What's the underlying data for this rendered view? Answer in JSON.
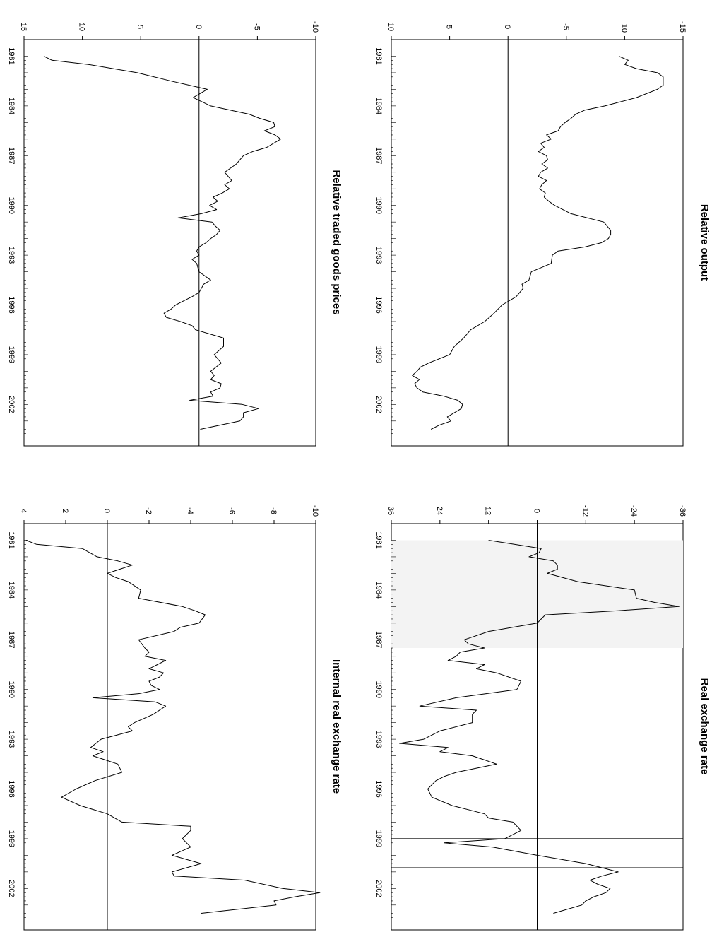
{
  "chart_data": [
    {
      "type": "line",
      "title": "Relative output",
      "x_tick_labels": [
        "1981",
        "1984",
        "1987",
        "1990",
        "1993",
        "1996",
        "1999",
        "2002"
      ],
      "y_tick_labels": [
        "-15",
        "-10",
        "-5",
        "0",
        "5",
        "10"
      ],
      "ylim": [
        -15,
        10
      ],
      "xlim": [
        1980.0,
        2004.5
      ],
      "zero_line": true,
      "grid": false,
      "series": [
        {
          "x": [
            1981.0,
            1981.25,
            1981.5,
            1981.75,
            1982.0,
            1982.25,
            1982.5,
            1982.75,
            1983.0,
            1983.5,
            1984.0,
            1984.25,
            1984.5,
            1984.75,
            1985.0,
            1985.25,
            1985.5,
            1985.75,
            1986.0,
            1986.25,
            1986.5,
            1986.75,
            1987.0,
            1987.25,
            1987.5,
            1987.75,
            1988.0,
            1988.25,
            1988.5,
            1988.75,
            1989.0,
            1989.25,
            1989.5,
            1989.75,
            1990.0,
            1990.5,
            1991.0,
            1991.5,
            1991.75,
            1992.0,
            1992.25,
            1992.5,
            1992.75,
            1993.0,
            1993.5,
            1994.0,
            1994.5,
            1994.75,
            1995.0,
            1995.5,
            1996.0,
            1996.5,
            1997.0,
            1997.5,
            1998.0,
            1998.5,
            1999.0,
            1999.5,
            1999.75,
            2000.0,
            2000.25,
            2000.5,
            2000.75,
            2001.0,
            2001.25,
            2001.5,
            2001.75,
            2002.0,
            2002.25,
            2002.5,
            2002.75,
            2003.0,
            2003.25,
            2003.5
          ],
          "y": [
            -9.5,
            -10.3,
            -10.0,
            -11.0,
            -12.8,
            -13.3,
            -13.3,
            -13.3,
            -12.8,
            -11.0,
            -8.3,
            -6.6,
            -5.8,
            -5.4,
            -4.9,
            -4.5,
            -4.3,
            -3.3,
            -3.7,
            -2.8,
            -3.1,
            -2.6,
            -3.3,
            -3.4,
            -2.9,
            -3.4,
            -2.8,
            -2.6,
            -3.3,
            -2.9,
            -2.7,
            -3.2,
            -3.1,
            -3.5,
            -4.0,
            -5.4,
            -8.2,
            -8.8,
            -8.8,
            -8.6,
            -8.0,
            -6.6,
            -4.3,
            -3.8,
            -3.7,
            -2.0,
            -1.8,
            -1.2,
            -1.3,
            -0.7,
            0.5,
            1.2,
            2.0,
            3.2,
            3.8,
            4.6,
            5.0,
            6.8,
            7.5,
            7.8,
            8.2,
            7.6,
            8.0,
            7.8,
            7.3,
            5.5,
            4.3,
            3.9,
            4.0,
            4.6,
            5.2,
            4.9,
            5.9,
            6.6
          ]
        }
      ]
    },
    {
      "type": "line",
      "title": "Real exchange rate",
      "x_tick_labels": [
        "1981",
        "1984",
        "1987",
        "1990",
        "1993",
        "1996",
        "1999",
        "2002"
      ],
      "y_tick_labels": [
        "-36",
        "-24",
        "-12",
        "0",
        "12",
        "24",
        "36"
      ],
      "ylim": [
        -36,
        36
      ],
      "xlim": [
        1980.0,
        2004.5
      ],
      "zero_line": true,
      "grid": false,
      "shaded_regions": [
        [
          1981.0,
          1987.5
        ]
      ],
      "vertical_lines": [
        1999.0,
        2000.75
      ],
      "series": [
        {
          "x": [
            1981.0,
            1981.5,
            1981.75,
            1982.0,
            1982.25,
            1982.5,
            1982.75,
            1983.0,
            1983.5,
            1984.0,
            1984.5,
            1984.75,
            1985.0,
            1985.25,
            1985.5,
            1986.0,
            1986.5,
            1987.0,
            1987.25,
            1987.5,
            1987.75,
            1988.0,
            1988.25,
            1988.5,
            1988.75,
            1989.0,
            1989.5,
            1990.0,
            1990.5,
            1991.0,
            1991.25,
            1991.5,
            1992.0,
            1992.5,
            1993.0,
            1993.25,
            1993.5,
            1993.75,
            1994.0,
            1994.25,
            1994.5,
            1995.0,
            1995.25,
            1995.5,
            1996.0,
            1996.5,
            1997.0,
            1997.25,
            1997.5,
            1997.75,
            1998.0,
            1998.5,
            1999.0,
            1999.25,
            1999.5,
            2000.0,
            2000.5,
            2000.75,
            2001.0,
            2001.25,
            2001.5,
            2001.75,
            2002.0,
            2002.25,
            2002.5,
            2002.75,
            2003.0,
            2003.5
          ],
          "y": [
            12.0,
            -1.0,
            -0.5,
            2.0,
            -4.0,
            -5.0,
            -5.0,
            -2.5,
            -10.0,
            -24.0,
            -24.5,
            -29.0,
            -35.0,
            -20.0,
            -2.0,
            0.0,
            12.0,
            18.0,
            17.0,
            13.0,
            19.0,
            20.0,
            22.0,
            13.0,
            15.0,
            10.0,
            4.0,
            5.0,
            20.0,
            29.0,
            15.0,
            16.0,
            16.0,
            24.0,
            28.0,
            34.0,
            22.0,
            24.0,
            16.0,
            13.0,
            10.0,
            20.0,
            23.0,
            25.0,
            27.0,
            26.0,
            21.0,
            17.0,
            13.0,
            12.0,
            6.0,
            4.0,
            8.0,
            23.0,
            11.0,
            0.0,
            -12.0,
            -16.0,
            -20.0,
            -16.0,
            -13.0,
            -15.0,
            -18.0,
            -17.0,
            -14.0,
            -12.0,
            -11.0,
            -4.0
          ]
        }
      ]
    },
    {
      "type": "line",
      "title": "Relative traded goods prices",
      "x_tick_labels": [
        "1981",
        "1984",
        "1987",
        "1990",
        "1993",
        "1996",
        "1999",
        "2002"
      ],
      "y_tick_labels": [
        "-10",
        "-5",
        "0",
        "5",
        "10",
        "15"
      ],
      "ylim": [
        -10,
        15
      ],
      "xlim": [
        1980.0,
        2004.5
      ],
      "zero_line": true,
      "grid": false,
      "series": [
        {
          "x": [
            1981.0,
            1981.25,
            1981.5,
            1982.0,
            1982.5,
            1983.0,
            1983.5,
            1984.0,
            1984.5,
            1984.75,
            1985.0,
            1985.25,
            1985.5,
            1985.75,
            1986.0,
            1986.25,
            1986.5,
            1986.75,
            1987.0,
            1987.5,
            1988.0,
            1988.5,
            1988.75,
            1989.0,
            1989.25,
            1989.5,
            1989.75,
            1990.0,
            1990.25,
            1990.5,
            1990.75,
            1991.0,
            1991.25,
            1991.5,
            1991.75,
            1992.0,
            1992.25,
            1992.5,
            1992.75,
            1993.0,
            1993.25,
            1993.5,
            1994.0,
            1994.5,
            1994.75,
            1995.0,
            1995.25,
            1995.5,
            1996.0,
            1996.25,
            1996.5,
            1996.75,
            1997.0,
            1997.25,
            1997.5,
            1998.0,
            1998.5,
            1999.0,
            1999.5,
            2000.0,
            2000.25,
            2000.5,
            2000.75,
            2001.0,
            2001.25,
            2001.5,
            2001.75,
            2002.0,
            2002.25,
            2002.5,
            2002.75,
            2003.0,
            2003.5
          ],
          "y": [
            13.3,
            12.6,
            9.5,
            5.3,
            2.4,
            -0.7,
            0.5,
            -1.0,
            -4.3,
            -5.2,
            -6.4,
            -6.5,
            -5.6,
            -6.5,
            -7.0,
            -6.4,
            -5.8,
            -4.6,
            -3.8,
            -3.2,
            -2.2,
            -2.8,
            -2.2,
            -2.6,
            -2.0,
            -1.2,
            -1.6,
            -0.9,
            -1.5,
            -0.2,
            1.8,
            -1.1,
            -1.4,
            -1.8,
            -1.5,
            -1.0,
            -0.6,
            0.0,
            0.2,
            0.0,
            0.6,
            0.2,
            0.0,
            -1.0,
            -0.4,
            -0.2,
            0.0,
            0.6,
            2.0,
            2.4,
            3.0,
            2.8,
            1.6,
            0.6,
            0.3,
            -2.1,
            -2.1,
            -1.3,
            -1.9,
            -1.0,
            -1.3,
            -1.0,
            -1.9,
            -1.8,
            -1.0,
            -1.2,
            0.8,
            -3.7,
            -5.1,
            -3.8,
            -3.8,
            -3.5,
            -0.1
          ]
        }
      ]
    },
    {
      "type": "line",
      "title": "Internal real exchange rate",
      "x_tick_labels": [
        "1981",
        "1984",
        "1987",
        "1990",
        "1993",
        "1996",
        "1999",
        "2002"
      ],
      "y_tick_labels": [
        "-10",
        "-8",
        "-6",
        "-4",
        "-2",
        "0",
        "2",
        "4"
      ],
      "ylim": [
        -10,
        4
      ],
      "xlim": [
        1980.0,
        2004.5
      ],
      "zero_line": true,
      "grid": false,
      "series": [
        {
          "x": [
            1981.0,
            1981.25,
            1981.5,
            1982.0,
            1982.25,
            1982.5,
            1982.75,
            1983.0,
            1983.25,
            1983.5,
            1984.0,
            1984.5,
            1985.0,
            1985.25,
            1985.5,
            1986.0,
            1986.25,
            1986.5,
            1987.0,
            1987.5,
            1987.75,
            1988.0,
            1988.25,
            1988.5,
            1988.75,
            1989.0,
            1989.25,
            1989.5,
            1989.75,
            1990.0,
            1990.25,
            1990.5,
            1990.75,
            1991.0,
            1991.5,
            1992.0,
            1992.25,
            1992.5,
            1993.0,
            1993.5,
            1993.75,
            1994.0,
            1994.25,
            1994.5,
            1995.0,
            1995.5,
            1996.0,
            1996.5,
            1997.0,
            1997.5,
            1998.0,
            1998.25,
            1998.5,
            1999.0,
            1999.5,
            2000.0,
            2000.5,
            2001.0,
            2001.25,
            2001.5,
            2002.0,
            2002.25,
            2002.5,
            2002.75,
            2003.0,
            2003.5
          ],
          "y": [
            3.9,
            3.4,
            1.2,
            0.5,
            -0.5,
            -1.2,
            -0.6,
            0.0,
            -0.4,
            -1.0,
            -1.6,
            -1.5,
            -3.6,
            -4.2,
            -4.7,
            -4.4,
            -3.5,
            -3.2,
            -1.5,
            -1.8,
            -2.0,
            -1.8,
            -2.8,
            -2.4,
            -2.0,
            -2.7,
            -2.5,
            -2.0,
            -2.1,
            -2.5,
            -1.5,
            0.7,
            -2.3,
            -2.8,
            -2.2,
            -1.3,
            -1.0,
            -1.2,
            0.3,
            0.8,
            0.2,
            0.7,
            0.1,
            -0.5,
            -0.7,
            0.6,
            1.5,
            2.2,
            1.3,
            0.0,
            -0.7,
            -4.0,
            -4.0,
            -3.6,
            -4.0,
            -3.1,
            -4.5,
            -3.1,
            -3.2,
            -6.6,
            -8.4,
            -10.2,
            -9.0,
            -8.0,
            -8.1,
            -4.5
          ]
        }
      ]
    }
  ]
}
